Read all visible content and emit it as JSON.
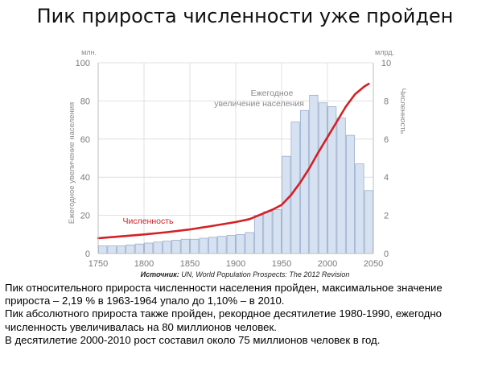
{
  "slide": {
    "title": "Пик прироста численности уже пройден",
    "source_label": "Источник:",
    "source_text": " UN, World Population Prospects: The 2012 Revision",
    "paragraphs": [
      "Пик относительного прироста численности населения пройден, максимальное значение прироста – 2,19 % в 1963-1964 упало до 1,10% – в 2010.",
      "Пик абсолютного прироста также  пройден, рекордное десятилетие 1980-1990, ежегодно численность увеличивалась на 80 миллионов человек.",
      "В десятилетие 2000-2010 рост составил около 75 миллионов человек в год."
    ]
  },
  "chart_data": {
    "type": "bar+line",
    "bar_color": "#d6e2f1",
    "bar_edge_color": "#8fa6c4",
    "line_color": "#d42027",
    "left_axis": {
      "unit": "млн.",
      "label": "Ежегодное увеличение населения",
      "ylim": [
        0,
        100
      ],
      "ticks": [
        0,
        20,
        40,
        60,
        80,
        100
      ]
    },
    "right_axis": {
      "unit": "млрд.",
      "label": "Численность",
      "ylim": [
        0,
        10
      ],
      "ticks": [
        0,
        2,
        4,
        6,
        8,
        10
      ]
    },
    "x_axis": {
      "xlim": [
        1750,
        2050
      ],
      "ticks": [
        1750,
        1800,
        1850,
        1900,
        1950,
        2000,
        2050
      ]
    },
    "bars": {
      "name": "Ежегодное увеличение населения",
      "width": 10,
      "x": [
        1750,
        1760,
        1770,
        1780,
        1790,
        1800,
        1810,
        1820,
        1830,
        1840,
        1850,
        1860,
        1870,
        1880,
        1890,
        1900,
        1910,
        1920,
        1930,
        1940,
        1950,
        1960,
        1970,
        1980,
        1990,
        2000,
        2010,
        2020,
        2030,
        2040
      ],
      "values": [
        4,
        4,
        4,
        4.5,
        5,
        5.5,
        6,
        6.5,
        7,
        7.5,
        7.5,
        8,
        8.5,
        9,
        9.5,
        10,
        11,
        20,
        22,
        23,
        51,
        69,
        75,
        83,
        79,
        77,
        71,
        62,
        47,
        33
      ]
    },
    "line": {
      "name": "Численность",
      "x": [
        1750,
        1775,
        1800,
        1825,
        1850,
        1875,
        1900,
        1915,
        1925,
        1940,
        1950,
        1960,
        1970,
        1980,
        1990,
        2000,
        2010,
        2020,
        2030,
        2040,
        2045
      ],
      "values": [
        0.8,
        0.9,
        1.0,
        1.12,
        1.26,
        1.45,
        1.65,
        1.8,
        2.0,
        2.3,
        2.55,
        3.05,
        3.7,
        4.45,
        5.3,
        6.1,
        6.9,
        7.7,
        8.35,
        8.75,
        8.9
      ]
    },
    "annotations": {
      "bars_label": [
        "Ежегодное",
        "увеличение населения"
      ],
      "line_label": "Численность"
    }
  }
}
